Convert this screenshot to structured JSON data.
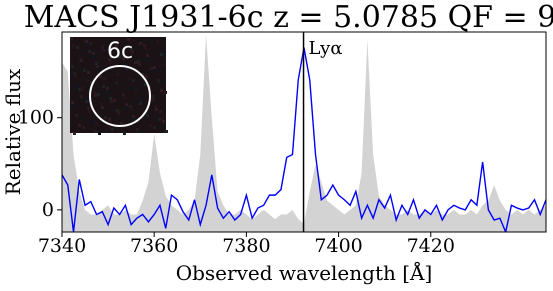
{
  "chart_data": {
    "type": "line",
    "title": "MACS J1931-6c z = 5.0785 QF = 9",
    "x_label": "Observed wavelength [Å]",
    "y_label": "Relative flux",
    "x": [
      7340,
      7341.25,
      7342.5,
      7343.75,
      7345,
      7346.25,
      7347.5,
      7348.75,
      7350,
      7351.25,
      7352.5,
      7353.75,
      7355,
      7356.25,
      7357.5,
      7358.75,
      7360,
      7361.25,
      7362.5,
      7363.75,
      7365,
      7366.25,
      7367.5,
      7368.75,
      7370,
      7371.25,
      7372.5,
      7373.75,
      7375,
      7376.25,
      7377.5,
      7378.75,
      7380,
      7381.25,
      7382.5,
      7383.75,
      7385,
      7386.25,
      7387.5,
      7388.75,
      7390,
      7391.25,
      7392.5,
      7393.75,
      7395,
      7396.25,
      7397.5,
      7398.75,
      7400,
      7401.25,
      7402.5,
      7403.75,
      7405,
      7406.25,
      7407.5,
      7408.75,
      7410,
      7411.25,
      7412.5,
      7413.75,
      7415,
      7416.25,
      7417.5,
      7418.75,
      7420,
      7421.25,
      7422.5,
      7423.75,
      7425,
      7426.25,
      7427.5,
      7428.75,
      7430,
      7431.25,
      7432.5,
      7433.75,
      7435,
      7436.25,
      7437.5,
      7438.75,
      7440,
      7441.25,
      7442.5,
      7443.75,
      7445
    ],
    "series": [
      {
        "color": "#d3d3d3",
        "fill": true,
        "values": [
          160,
          150,
          60,
          20,
          0,
          -5,
          -5,
          0,
          5,
          -5,
          -5,
          0,
          -5,
          -5,
          10,
          30,
          82,
          40,
          15,
          5,
          0,
          -5,
          0,
          10,
          60,
          190,
          100,
          20,
          5,
          -5,
          -5,
          0,
          -5,
          -10,
          -5,
          0,
          -5,
          -10,
          -5,
          -5,
          0,
          -10,
          -15,
          20,
          49,
          30,
          10,
          5,
          0,
          -5,
          0,
          5,
          40,
          185,
          60,
          15,
          5,
          0,
          -5,
          -5,
          0,
          -5,
          -5,
          0,
          -5,
          0,
          -5,
          -5,
          0,
          -5,
          -5,
          0,
          -5,
          5,
          10,
          27,
          10,
          0,
          -5,
          0,
          -5,
          0,
          -5,
          0,
          5
        ]
      },
      {
        "color": "#0000ff",
        "fill": false,
        "values": [
          38,
          27,
          -24,
          33,
          5,
          9,
          -5,
          -2,
          -16,
          2,
          -5,
          5,
          -16,
          -9,
          -5,
          -13,
          -5,
          5,
          -20,
          16,
          11,
          -2,
          -11,
          11,
          -16,
          5,
          38,
          2,
          -9,
          -2,
          -11,
          -5,
          16,
          -9,
          2,
          5,
          16,
          16,
          22,
          57,
          60,
          141,
          176,
          141,
          60,
          11,
          16,
          27,
          16,
          11,
          5,
          20,
          -9,
          5,
          -9,
          11,
          2,
          16,
          -11,
          5,
          -5,
          11,
          -9,
          0,
          -5,
          5,
          -11,
          0,
          5,
          2,
          0,
          11,
          5,
          52,
          0,
          -11,
          -9,
          -24,
          5,
          2,
          0,
          2,
          11,
          -5,
          11
        ]
      }
    ],
    "annotations": [
      {
        "text": "Lyα",
        "x": 7392.4
      }
    ],
    "inset": {
      "label": "6c"
    },
    "xlim": [
      7340,
      7445
    ],
    "ylim": [
      -24,
      193
    ],
    "xticks": [
      7340,
      7360,
      7380,
      7400,
      7420
    ],
    "yticks": [
      0,
      100
    ]
  }
}
